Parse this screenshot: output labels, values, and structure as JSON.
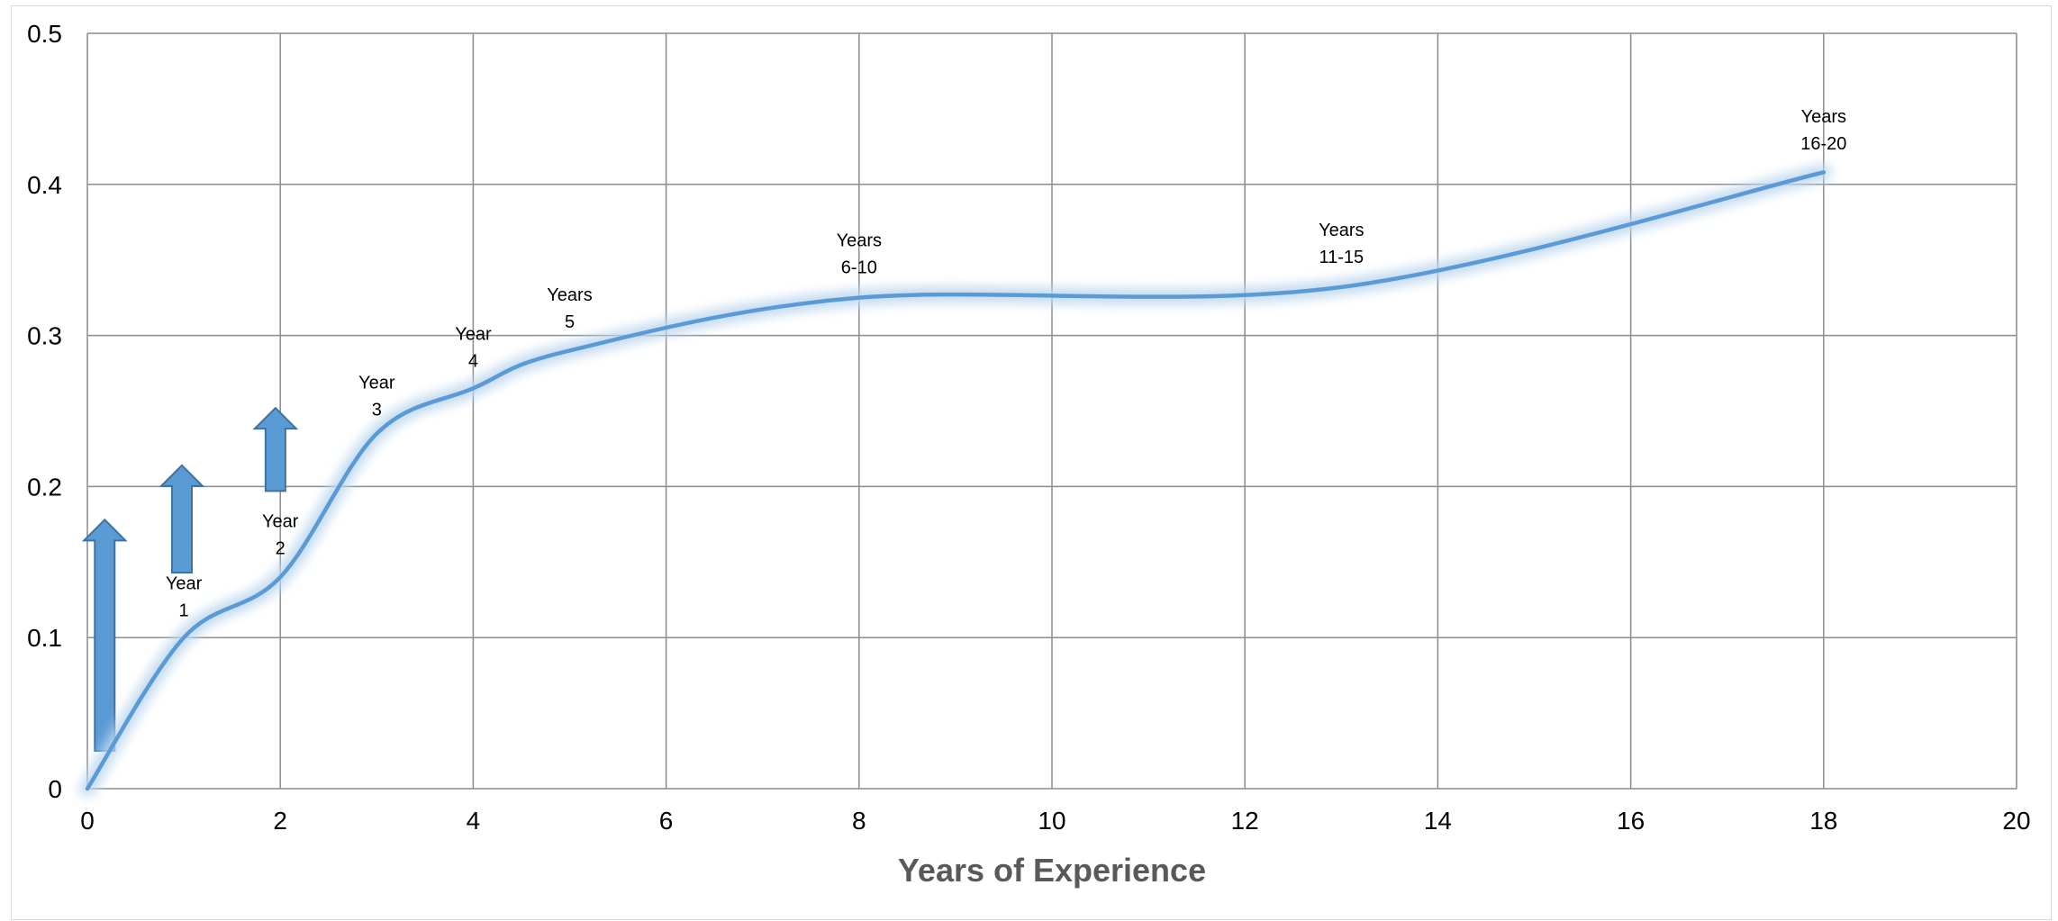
{
  "chart_data": {
    "type": "line",
    "title": "",
    "xlabel": "Years of Experience",
    "ylabel": "",
    "xlim": [
      0,
      20
    ],
    "ylim": [
      0,
      0.5
    ],
    "x_ticks": [
      "0",
      "2",
      "4",
      "6",
      "8",
      "10",
      "12",
      "14",
      "16",
      "18",
      "20"
    ],
    "y_ticks": [
      "0",
      "0.1",
      "0.2",
      "0.3",
      "0.4",
      "0.5"
    ],
    "grid": true,
    "legend": "none",
    "smooth": true,
    "series": [
      {
        "color": "#5b9bd5",
        "x": [
          0,
          1,
          2,
          3,
          4,
          5,
          8,
          13,
          18
        ],
        "y": [
          0,
          0.1,
          0.14,
          0.235,
          0.265,
          0.29,
          0.325,
          0.332,
          0.408
        ]
      }
    ],
    "annotations": [
      {
        "lines": [
          "Year",
          "1"
        ],
        "x": 1,
        "y": 0.132
      },
      {
        "lines": [
          "Year",
          "2"
        ],
        "x": 2,
        "y": 0.173
      },
      {
        "lines": [
          "Year",
          "3"
        ],
        "x": 3,
        "y": 0.265
      },
      {
        "lines": [
          "Year",
          "4"
        ],
        "x": 4,
        "y": 0.297
      },
      {
        "lines": [
          "Years",
          "5"
        ],
        "x": 5,
        "y": 0.323
      },
      {
        "lines": [
          "Years",
          "6-10"
        ],
        "x": 8,
        "y": 0.359
      },
      {
        "lines": [
          "Years",
          "11-15"
        ],
        "x": 13,
        "y": 0.366
      },
      {
        "lines": [
          "Years",
          "16-20"
        ],
        "x": 18,
        "y": 0.441
      }
    ],
    "arrows": [
      {
        "x": 0.18,
        "y_from": 0.025,
        "y_to": 0.178
      },
      {
        "x": 0.98,
        "y_from": 0.143,
        "y_to": 0.214
      },
      {
        "x": 1.95,
        "y_from": 0.197,
        "y_to": 0.252
      }
    ]
  }
}
